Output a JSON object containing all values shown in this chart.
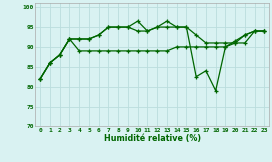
{
  "xlabel": "Humidité relative (%)",
  "xlim": [
    -0.5,
    23.5
  ],
  "ylim": [
    70,
    101
  ],
  "yticks": [
    70,
    75,
    80,
    85,
    90,
    95,
    100
  ],
  "xticks": [
    0,
    1,
    2,
    3,
    4,
    5,
    6,
    7,
    8,
    9,
    10,
    11,
    12,
    13,
    14,
    15,
    16,
    17,
    18,
    19,
    20,
    21,
    22,
    23
  ],
  "background_color": "#d9f2f2",
  "grid_color": "#bbdddd",
  "line_color": "#006600",
  "series1": [
    82,
    86,
    88,
    92,
    89,
    89,
    89,
    89,
    89,
    89,
    89,
    89,
    89,
    89,
    90,
    90,
    90,
    90,
    90,
    90,
    91,
    91,
    94,
    94
  ],
  "series2": [
    82,
    86,
    88,
    92,
    92,
    92,
    93,
    95,
    95,
    95,
    94,
    94,
    95,
    95,
    95,
    95,
    93,
    91,
    91,
    91,
    91,
    93,
    94,
    94
  ],
  "series3": [
    82,
    86,
    88,
    92,
    92,
    92,
    93,
    95,
    95,
    95,
    96.5,
    94,
    95,
    96.5,
    95,
    95,
    82.5,
    84,
    79,
    90,
    91.5,
    93,
    94,
    94
  ]
}
